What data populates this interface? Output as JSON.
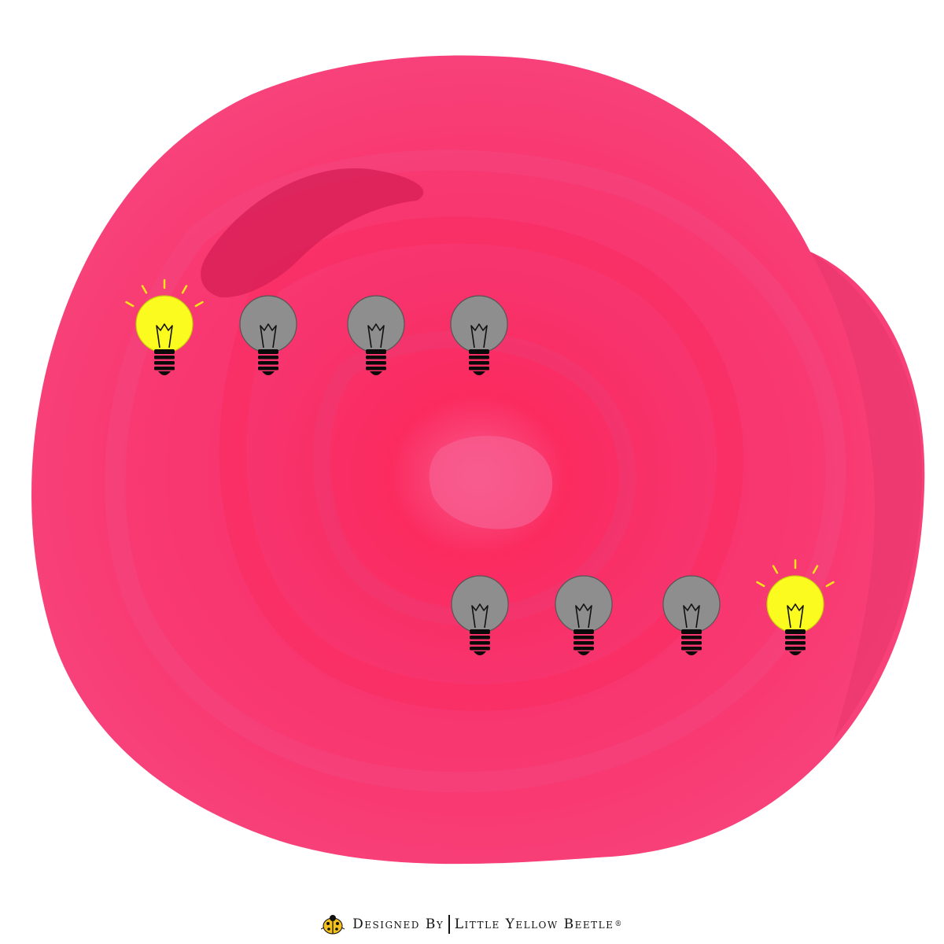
{
  "colors": {
    "background": "#ffffff",
    "blob_base": "#f7437c",
    "blob_mid": "#fb2b5f",
    "blob_light": "#f95a8e",
    "blob_dark": "#d81f57",
    "bulb_lit": "#fbfb1f",
    "bulb_unlit": "#8e8e8e",
    "bulb_outline": "#555555",
    "bulb_base": "#0a0a0a",
    "ray": "#f2e419"
  },
  "rows": [
    {
      "bulbs": [
        {
          "state": "lit"
        },
        {
          "state": "unlit"
        },
        {
          "state": "unlit"
        },
        {
          "state": "unlit"
        }
      ]
    },
    {
      "bulbs": [
        {
          "state": "unlit"
        },
        {
          "state": "unlit"
        },
        {
          "state": "unlit"
        },
        {
          "state": "lit"
        }
      ]
    }
  ],
  "icons": {
    "bulb": "light-bulb-icon",
    "beetle": "ladybug-icon"
  },
  "footer": {
    "designed_by": "Designed By",
    "brand": "Little Yellow Beetle",
    "registered": "®"
  }
}
